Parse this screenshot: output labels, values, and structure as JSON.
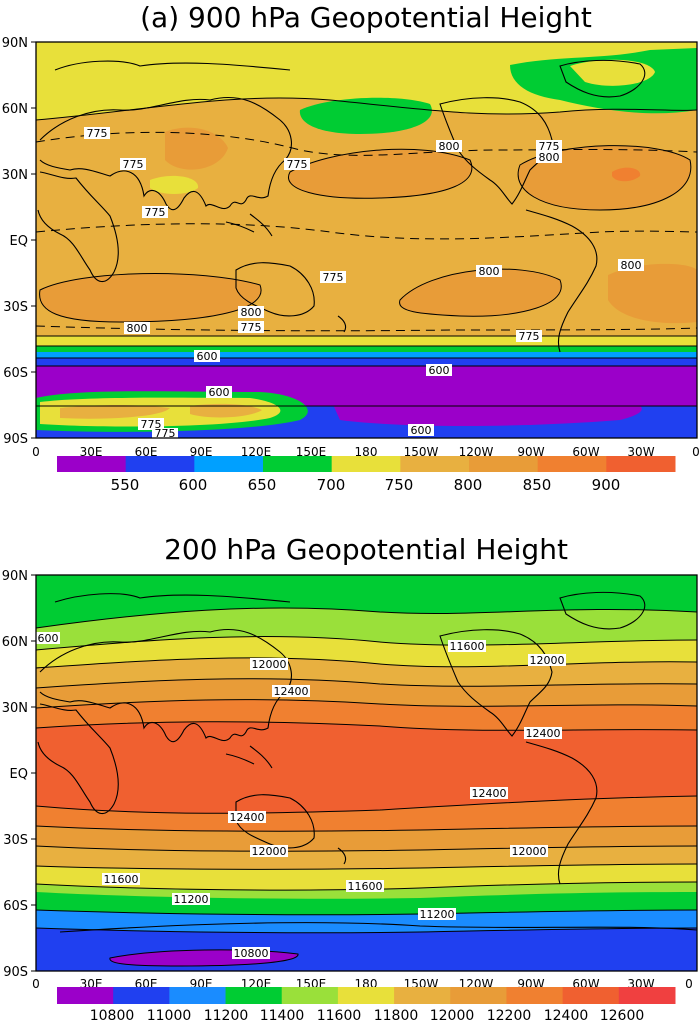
{
  "panels": [
    {
      "id": "p900",
      "title": "(a) 900 hPa Geopotential Height",
      "y_tick_labels": [
        "90N",
        "60N",
        "30N",
        "EQ",
        "30S",
        "60S",
        "90S"
      ],
      "x_tick_labels": [
        "0",
        "30E",
        "60E",
        "90E",
        "120E",
        "150E",
        "180",
        "150W",
        "120W",
        "90W",
        "60W",
        "30W",
        "0"
      ],
      "colorbar": {
        "colors": [
          "#9b00c9",
          "#2040f0",
          "#00a0ff",
          "#00cc33",
          "#e8e03a",
          "#e8b040",
          "#e89c38",
          "#f08030",
          "#f06030"
        ],
        "tick_labels": [
          "550",
          "600",
          "650",
          "700",
          "750",
          "800",
          "850",
          "900"
        ]
      },
      "contour_labels": [
        "775",
        "775",
        "775",
        "775",
        "800",
        "775",
        "800",
        "775",
        "775",
        "800",
        "800",
        "800",
        "775",
        "800",
        "775",
        "600",
        "600",
        "600",
        "775",
        "775",
        "600"
      ]
    },
    {
      "id": "p200",
      "title": "200 hPa Geopotential Height",
      "y_tick_labels": [
        "90N",
        "60N",
        "30N",
        "EQ",
        "30S",
        "60S",
        "90S"
      ],
      "x_tick_labels": [
        "0",
        "30E",
        "60E",
        "90E",
        "120E",
        "150E",
        "180",
        "150W",
        "120W",
        "90W",
        "60W",
        "30W",
        "0"
      ],
      "colorbar": {
        "colors": [
          "#9b00c9",
          "#2040f0",
          "#1a8cff",
          "#00cc33",
          "#9ae03a",
          "#e8e03a",
          "#e8b040",
          "#e89c38",
          "#f08030",
          "#f06030",
          "#f04040"
        ],
        "tick_labels": [
          "10800",
          "11000",
          "11200",
          "11400",
          "11600",
          "11800",
          "12000",
          "12200",
          "12400",
          "12600"
        ]
      },
      "contour_labels": [
        "600",
        "11600",
        "12000",
        "12000",
        "12400",
        "12400",
        "12400",
        "12400",
        "12000",
        "12000",
        "11600",
        "11600",
        "11200",
        "11200",
        "10800"
      ]
    }
  ]
}
